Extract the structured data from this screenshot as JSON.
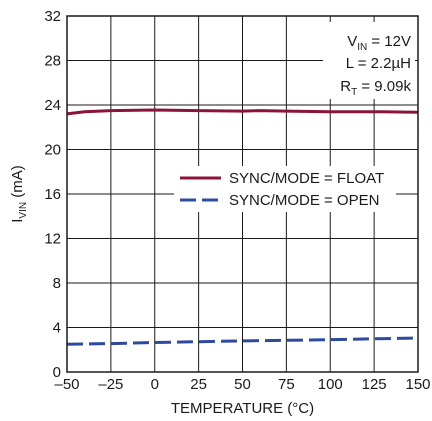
{
  "chart_data": {
    "type": "line",
    "xlabel": "TEMPERATURE (°C)",
    "ylabel_main": "I",
    "ylabel_sub": "VIN",
    "ylabel_unit": " (mA)",
    "xlim": [
      -50,
      150
    ],
    "ylim": [
      0,
      32
    ],
    "xticks": [
      -50,
      -25,
      0,
      25,
      50,
      75,
      100,
      125,
      150
    ],
    "xtick_labels": [
      "–50",
      "–25",
      "0",
      "25",
      "50",
      "75",
      "100",
      "125",
      "150"
    ],
    "yticks": [
      0,
      4,
      8,
      12,
      16,
      20,
      24,
      28,
      32
    ],
    "ytick_labels": [
      "0",
      "4",
      "8",
      "12",
      "16",
      "20",
      "24",
      "28",
      "32"
    ],
    "grid": true,
    "legend_position": "center-right",
    "annotations": [
      {
        "main": "V",
        "sub": "IN",
        "rest": " = 12V"
      },
      {
        "main": "L = 2.2µH",
        "sub": "",
        "rest": ""
      },
      {
        "main": "R",
        "sub": "T",
        "rest": " = 9.09k"
      }
    ],
    "series": [
      {
        "name": "SYNC/MODE = FLOAT",
        "color": "#8a1538",
        "style": "solid",
        "x": [
          -50,
          -40,
          -25,
          0,
          25,
          50,
          60,
          75,
          100,
          125,
          150
        ],
        "y": [
          23.2,
          23.4,
          23.5,
          23.55,
          23.5,
          23.45,
          23.5,
          23.45,
          23.4,
          23.4,
          23.35
        ]
      },
      {
        "name": "SYNC/MODE = OPEN",
        "color": "#2e4a9e",
        "style": "dashed",
        "x": [
          -50,
          -25,
          0,
          25,
          50,
          75,
          100,
          125,
          150
        ],
        "y": [
          2.5,
          2.55,
          2.65,
          2.72,
          2.8,
          2.85,
          2.9,
          2.98,
          3.05
        ]
      }
    ]
  }
}
